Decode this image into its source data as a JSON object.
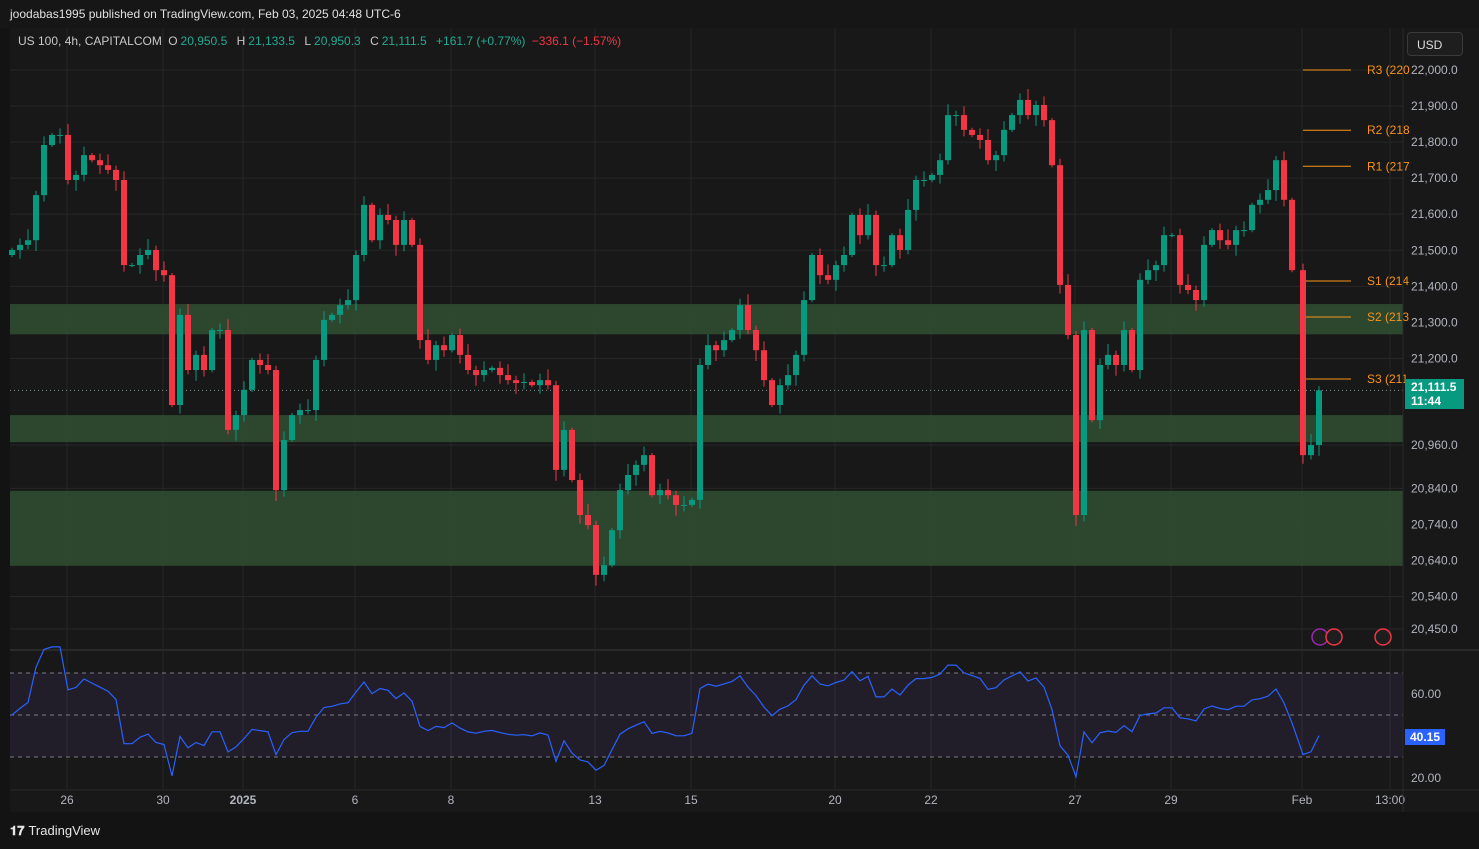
{
  "header": {
    "published": "joodabas1995 published on TradingView.com, Feb 03, 2025 04:48 UTC-6"
  },
  "legend": {
    "symbol": "US 100, 4h, CAPITALCOM",
    "o_label": "O",
    "o": "20,950.5",
    "h_label": "H",
    "h": "21,133.5",
    "l_label": "L",
    "l": "20,950.3",
    "c_label": "C",
    "c": "21,111.5",
    "change": "+161.7 (+0.77%)",
    "change2": "−336.1 (−1.57%)"
  },
  "currency": "USD",
  "last_price": {
    "value": "21,111.5",
    "countdown": "11:44"
  },
  "rsi_value": "40.15",
  "footer": {
    "brand": "TradingView"
  },
  "colors": {
    "up": "#089981",
    "down": "#f23645",
    "zone": "#2d4a2f",
    "pivot": "#f7931a",
    "rsi": "#2962ff"
  },
  "chart_data": {
    "type": "candlestick",
    "title": "US 100, 4h, CAPITALCOM",
    "ylim": [
      20450,
      22000
    ],
    "price_ticks": [
      "22,000.0",
      "21,900.0",
      "21,800.0",
      "21,700.0",
      "21,600.0",
      "21,500.0",
      "21,400.0",
      "21,300.0",
      "21,200.0",
      "20,960.0",
      "20,840.0",
      "20,740.0",
      "20,640.0",
      "20,540.0",
      "20,450.0"
    ],
    "price_tick_values": [
      22000,
      21900,
      21800,
      21700,
      21600,
      21500,
      21400,
      21300,
      21200,
      20960,
      20840,
      20740,
      20640,
      20540,
      20450
    ],
    "x_ticks": [
      {
        "label": "26",
        "index": 7
      },
      {
        "label": "30",
        "index": 19
      },
      {
        "label": "2025",
        "index": 29
      },
      {
        "label": "6",
        "index": 43
      },
      {
        "label": "8",
        "index": 55
      },
      {
        "label": "13",
        "index": 73
      },
      {
        "label": "15",
        "index": 85
      },
      {
        "label": "20",
        "index": 103
      },
      {
        "label": "22",
        "index": 115
      },
      {
        "label": "27",
        "index": 133
      },
      {
        "label": "29",
        "index": 145
      },
      {
        "label": "Feb",
        "index": 161
      },
      {
        "label": "13:00",
        "index": 172
      }
    ],
    "closes": [
      21501,
      21515,
      21528,
      21653,
      21792,
      21820,
      21820,
      21695,
      21709,
      21764,
      21750,
      21736,
      21723,
      21695,
      21459,
      21459,
      21487,
      21501,
      21445,
      21431,
      21071,
      21321,
      21168,
      21210,
      21168,
      21279,
      21279,
      21002,
      21043,
      21113,
      21196,
      21182,
      21168,
      20835,
      20974,
      21043,
      21057,
      21057,
      21196,
      21307,
      21321,
      21348,
      21362,
      21487,
      21626,
      21528,
      21598,
      21584,
      21515,
      21584,
      21515,
      21251,
      21196,
      21237,
      21223,
      21265,
      21210,
      21168,
      21154,
      21168,
      21174,
      21154,
      21140,
      21132,
      21135,
      21126,
      21140,
      21126,
      20891,
      21002,
      20863,
      20766,
      20738,
      20600,
      20627,
      20724,
      20835,
      20877,
      20905,
      20932,
      20821,
      20835,
      20821,
      20794,
      20794,
      20808,
      21182,
      21237,
      21223,
      21251,
      21279,
      21348,
      21279,
      21223,
      21140,
      21071,
      21126,
      21154,
      21210,
      21362,
      21487,
      21431,
      21418,
      21459,
      21487,
      21598,
      21542,
      21598,
      21459,
      21459,
      21542,
      21501,
      21612,
      21695,
      21695,
      21709,
      21750,
      21875,
      21875,
      21834,
      21820,
      21806,
      21750,
      21764,
      21834,
      21875,
      21917,
      21875,
      21903,
      21861,
      21736,
      21404,
      21265,
      20766,
      21279,
      21029,
      21182,
      21210,
      21182,
      21279,
      21168,
      21418,
      21445,
      21459,
      21542,
      21542,
      21404,
      21390,
      21362,
      21515,
      21556,
      21528,
      21515,
      21556,
      21556,
      21626,
      21640,
      21667,
      21750,
      21640,
      21445,
      20932,
      20960,
      21111.5
    ],
    "zones": [
      [
        21267,
        21351
      ],
      [
        20968,
        21043
      ],
      [
        20625,
        20833
      ]
    ],
    "pivots": [
      {
        "label": "R3 (220",
        "value": 22000
      },
      {
        "label": "R2 (218",
        "value": 21833
      },
      {
        "label": "R1 (217",
        "value": 21733
      },
      {
        "label": "S1 (214",
        "value": 21415
      },
      {
        "label": "S2 (213",
        "value": 21315
      },
      {
        "label": "S3 (211",
        "value": 21143
      }
    ],
    "rsi": {
      "period": 14,
      "ticks": [
        "60.00",
        "20.00"
      ],
      "tick_values": [
        60,
        20
      ],
      "levels": [
        70,
        50,
        30
      ],
      "last": 40.15
    }
  }
}
